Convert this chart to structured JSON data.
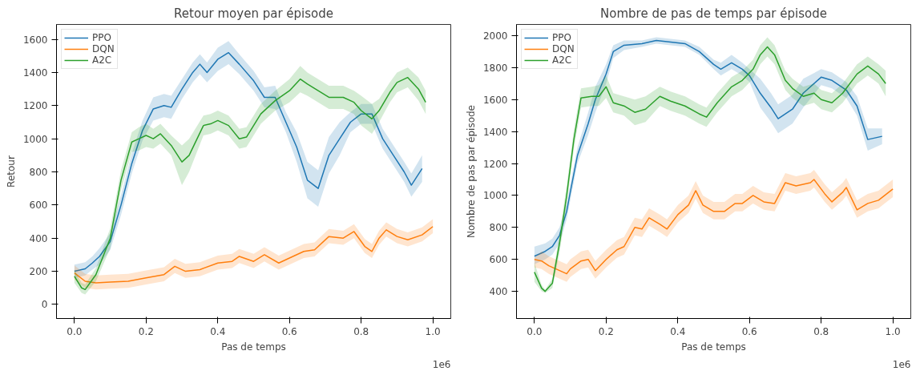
{
  "chart_data": [
    {
      "type": "line",
      "title": "Retour moyen par épisode",
      "xlabel": "Pas de temps",
      "ylabel": "Retour",
      "annotations": [
        "1e6"
      ],
      "grid": false,
      "legend": "top left",
      "line_style": "solid",
      "xlim": [
        -0.05,
        1.05
      ],
      "xticks": [
        {
          "value": 0,
          "label": "0.0"
        },
        {
          "value": 0.2,
          "label": "0.2"
        },
        {
          "value": 0.4,
          "label": "0.4"
        },
        {
          "value": 0.6,
          "label": "0.6"
        },
        {
          "value": 0.8,
          "label": "0.8"
        },
        {
          "value": 1,
          "label": "1.0"
        }
      ],
      "ylim": [
        -85,
        1690
      ],
      "yticks": [
        0,
        200,
        400,
        600,
        800,
        1000,
        1200,
        1400,
        1600
      ],
      "series": [
        {
          "name": "PPO",
          "color": "#1f77b4",
          "x": [
            0,
            0.03,
            0.05,
            0.07,
            0.1,
            0.13,
            0.16,
            0.19,
            0.22,
            0.25,
            0.27,
            0.3,
            0.33,
            0.35,
            0.37,
            0.4,
            0.43,
            0.46,
            0.5,
            0.53,
            0.56,
            0.59,
            0.62,
            0.65,
            0.68,
            0.71,
            0.74,
            0.77,
            0.8,
            0.83,
            0.86,
            0.89,
            0.92,
            0.94,
            0.97
          ],
          "values": [
            200,
            215,
            250,
            290,
            380,
            600,
            850,
            1050,
            1180,
            1200,
            1190,
            1300,
            1400,
            1450,
            1400,
            1480,
            1520,
            1450,
            1350,
            1250,
            1250,
            1100,
            950,
            750,
            700,
            900,
            1000,
            1100,
            1150,
            1150,
            1000,
            900,
            800,
            720,
            820
          ],
          "lower": [
            160,
            175,
            210,
            240,
            330,
            540,
            790,
            990,
            1110,
            1130,
            1120,
            1240,
            1340,
            1390,
            1340,
            1410,
            1450,
            1390,
            1290,
            1190,
            1180,
            1040,
            860,
            640,
            590,
            790,
            900,
            1040,
            1090,
            1090,
            940,
            840,
            740,
            650,
            740
          ],
          "upper": [
            240,
            255,
            290,
            340,
            430,
            660,
            910,
            1110,
            1250,
            1270,
            1260,
            1360,
            1460,
            1510,
            1460,
            1550,
            1590,
            1510,
            1410,
            1310,
            1320,
            1160,
            1040,
            860,
            810,
            1010,
            1100,
            1160,
            1210,
            1210,
            1060,
            960,
            860,
            790,
            900
          ]
        },
        {
          "name": "DQN",
          "color": "#ff7f0e",
          "x": [
            0,
            0.03,
            0.06,
            0.1,
            0.15,
            0.2,
            0.25,
            0.28,
            0.31,
            0.35,
            0.4,
            0.44,
            0.46,
            0.5,
            0.53,
            0.57,
            0.6,
            0.64,
            0.67,
            0.71,
            0.75,
            0.78,
            0.81,
            0.83,
            0.85,
            0.87,
            0.9,
            0.93,
            0.97,
            1.0
          ],
          "values": [
            190,
            140,
            130,
            135,
            140,
            160,
            180,
            230,
            200,
            210,
            250,
            260,
            290,
            260,
            300,
            250,
            280,
            320,
            330,
            410,
            400,
            440,
            350,
            320,
            400,
            450,
            410,
            390,
            420,
            470
          ],
          "lower": [
            150,
            100,
            90,
            95,
            100,
            120,
            140,
            190,
            160,
            170,
            210,
            220,
            250,
            220,
            260,
            210,
            240,
            280,
            290,
            370,
            360,
            400,
            310,
            280,
            360,
            410,
            370,
            350,
            380,
            430
          ],
          "upper": [
            235,
            185,
            175,
            180,
            185,
            205,
            225,
            275,
            245,
            255,
            295,
            305,
            335,
            305,
            345,
            295,
            325,
            365,
            375,
            455,
            445,
            485,
            395,
            365,
            445,
            495,
            455,
            435,
            465,
            515
          ]
        },
        {
          "name": "A2C",
          "color": "#2ca02c",
          "x": [
            0,
            0.02,
            0.03,
            0.06,
            0.1,
            0.13,
            0.16,
            0.18,
            0.2,
            0.22,
            0.24,
            0.27,
            0.3,
            0.32,
            0.36,
            0.38,
            0.4,
            0.43,
            0.46,
            0.48,
            0.52,
            0.56,
            0.6,
            0.63,
            0.65,
            0.68,
            0.71,
            0.75,
            0.78,
            0.8,
            0.83,
            0.85,
            0.88,
            0.9,
            0.93,
            0.96,
            0.98
          ],
          "values": [
            170,
            100,
            90,
            180,
            400,
            750,
            980,
            1000,
            1020,
            1000,
            1030,
            960,
            860,
            900,
            1080,
            1090,
            1110,
            1080,
            1000,
            1010,
            1150,
            1230,
            1290,
            1360,
            1330,
            1290,
            1250,
            1250,
            1220,
            1170,
            1120,
            1170,
            1280,
            1340,
            1370,
            1300,
            1220
          ],
          "lower": [
            130,
            70,
            60,
            140,
            340,
            690,
            920,
            930,
            950,
            940,
            970,
            900,
            720,
            800,
            1020,
            1030,
            1050,
            1020,
            940,
            950,
            1090,
            1170,
            1220,
            1280,
            1260,
            1220,
            1180,
            1180,
            1150,
            1080,
            1030,
            1100,
            1220,
            1280,
            1310,
            1230,
            1150
          ],
          "upper": [
            210,
            130,
            120,
            220,
            460,
            810,
            1040,
            1070,
            1090,
            1060,
            1090,
            1020,
            960,
            1000,
            1140,
            1150,
            1170,
            1140,
            1060,
            1070,
            1210,
            1290,
            1360,
            1440,
            1400,
            1360,
            1320,
            1320,
            1290,
            1260,
            1210,
            1240,
            1340,
            1400,
            1430,
            1370,
            1290
          ]
        }
      ]
    },
    {
      "type": "line",
      "title": "Nombre de pas de temps par épisode",
      "xlabel": "Pas de temps",
      "ylabel": "Nombre de pas par épisode",
      "annotations": [
        "1e6"
      ],
      "grid": false,
      "legend": "top left",
      "line_style": "solid",
      "xlim": [
        -0.05,
        1.05
      ],
      "xticks": [
        {
          "value": 0,
          "label": "0.0"
        },
        {
          "value": 0.2,
          "label": "0.2"
        },
        {
          "value": 0.4,
          "label": "0.4"
        },
        {
          "value": 0.6,
          "label": "0.6"
        },
        {
          "value": 0.8,
          "label": "0.8"
        },
        {
          "value": 1,
          "label": "1.0"
        }
      ],
      "ylim": [
        230,
        2070
      ],
      "yticks": [
        400,
        600,
        800,
        1000,
        1200,
        1400,
        1600,
        1800,
        2000
      ],
      "series": [
        {
          "name": "PPO",
          "color": "#1f77b4",
          "x": [
            0,
            0.03,
            0.05,
            0.07,
            0.09,
            0.1,
            0.12,
            0.15,
            0.17,
            0.2,
            0.22,
            0.25,
            0.3,
            0.34,
            0.38,
            0.42,
            0.46,
            0.5,
            0.52,
            0.55,
            0.58,
            0.6,
            0.63,
            0.66,
            0.68,
            0.72,
            0.75,
            0.8,
            0.83,
            0.87,
            0.9,
            0.93,
            0.95,
            0.97
          ],
          "values": [
            620,
            650,
            680,
            750,
            900,
            1020,
            1250,
            1450,
            1600,
            1760,
            1900,
            1940,
            1950,
            1970,
            1960,
            1950,
            1900,
            1820,
            1790,
            1830,
            1790,
            1750,
            1640,
            1550,
            1480,
            1540,
            1640,
            1740,
            1720,
            1660,
            1560,
            1350,
            1360,
            1370
          ],
          "lower": [
            570,
            600,
            630,
            700,
            850,
            970,
            1200,
            1380,
            1520,
            1700,
            1860,
            1910,
            1930,
            1950,
            1940,
            1930,
            1880,
            1790,
            1750,
            1790,
            1750,
            1710,
            1550,
            1460,
            1390,
            1450,
            1550,
            1690,
            1670,
            1610,
            1500,
            1280,
            1300,
            1320
          ],
          "upper": [
            680,
            700,
            730,
            800,
            950,
            1070,
            1300,
            1520,
            1680,
            1820,
            1940,
            1970,
            1970,
            1990,
            1980,
            1970,
            1930,
            1850,
            1830,
            1880,
            1830,
            1790,
            1730,
            1640,
            1570,
            1630,
            1730,
            1790,
            1770,
            1710,
            1620,
            1420,
            1420,
            1420
          ]
        },
        {
          "name": "DQN",
          "color": "#ff7f0e",
          "x": [
            0,
            0.02,
            0.04,
            0.07,
            0.09,
            0.1,
            0.13,
            0.15,
            0.17,
            0.2,
            0.23,
            0.25,
            0.28,
            0.3,
            0.32,
            0.35,
            0.37,
            0.4,
            0.43,
            0.45,
            0.47,
            0.5,
            0.53,
            0.56,
            0.58,
            0.61,
            0.64,
            0.67,
            0.7,
            0.73,
            0.77,
            0.78,
            0.81,
            0.83,
            0.86,
            0.87,
            0.9,
            0.93,
            0.96,
            1.0
          ],
          "values": [
            600,
            590,
            560,
            530,
            510,
            540,
            590,
            600,
            530,
            600,
            660,
            680,
            800,
            790,
            860,
            820,
            790,
            880,
            940,
            1030,
            940,
            900,
            900,
            950,
            950,
            1000,
            960,
            950,
            1080,
            1060,
            1080,
            1100,
            1010,
            960,
            1020,
            1050,
            910,
            950,
            970,
            1040
          ],
          "lower": [
            550,
            540,
            510,
            480,
            460,
            490,
            540,
            550,
            480,
            550,
            610,
            630,
            750,
            740,
            810,
            770,
            740,
            830,
            890,
            980,
            890,
            850,
            850,
            900,
            900,
            950,
            910,
            900,
            1030,
            1010,
            1030,
            1050,
            960,
            910,
            970,
            1000,
            860,
            900,
            920,
            990
          ],
          "upper": [
            610,
            650,
            620,
            590,
            570,
            600,
            650,
            660,
            590,
            660,
            720,
            740,
            860,
            850,
            920,
            880,
            850,
            940,
            1000,
            1090,
            1000,
            960,
            960,
            1010,
            1010,
            1060,
            1020,
            1010,
            1140,
            1120,
            1140,
            1160,
            1070,
            1020,
            1080,
            1110,
            970,
            1010,
            1030,
            1100
          ]
        },
        {
          "name": "A2C",
          "color": "#2ca02c",
          "x": [
            0,
            0.02,
            0.03,
            0.05,
            0.07,
            0.09,
            0.11,
            0.13,
            0.16,
            0.18,
            0.2,
            0.22,
            0.25,
            0.28,
            0.31,
            0.35,
            0.38,
            0.42,
            0.46,
            0.48,
            0.51,
            0.55,
            0.58,
            0.61,
            0.63,
            0.65,
            0.67,
            0.7,
            0.72,
            0.75,
            0.78,
            0.8,
            0.83,
            0.86,
            0.9,
            0.93,
            0.96,
            0.98
          ],
          "values": [
            520,
            420,
            400,
            450,
            700,
            1000,
            1350,
            1610,
            1620,
            1620,
            1680,
            1580,
            1560,
            1520,
            1540,
            1620,
            1590,
            1560,
            1510,
            1490,
            1580,
            1680,
            1720,
            1790,
            1880,
            1930,
            1880,
            1720,
            1670,
            1620,
            1640,
            1600,
            1580,
            1640,
            1760,
            1810,
            1760,
            1700
          ],
          "lower": [
            460,
            400,
            390,
            420,
            640,
            940,
            1290,
            1550,
            1560,
            1560,
            1610,
            1520,
            1500,
            1440,
            1460,
            1560,
            1530,
            1500,
            1450,
            1430,
            1520,
            1620,
            1660,
            1730,
            1820,
            1870,
            1820,
            1660,
            1610,
            1560,
            1580,
            1540,
            1520,
            1580,
            1700,
            1750,
            1700,
            1620
          ],
          "upper": [
            580,
            440,
            410,
            480,
            760,
            1060,
            1410,
            1670,
            1680,
            1690,
            1750,
            1640,
            1620,
            1600,
            1620,
            1680,
            1650,
            1620,
            1570,
            1550,
            1640,
            1740,
            1780,
            1850,
            1940,
            1990,
            1940,
            1780,
            1730,
            1680,
            1700,
            1660,
            1640,
            1700,
            1820,
            1870,
            1820,
            1780
          ]
        }
      ]
    }
  ]
}
